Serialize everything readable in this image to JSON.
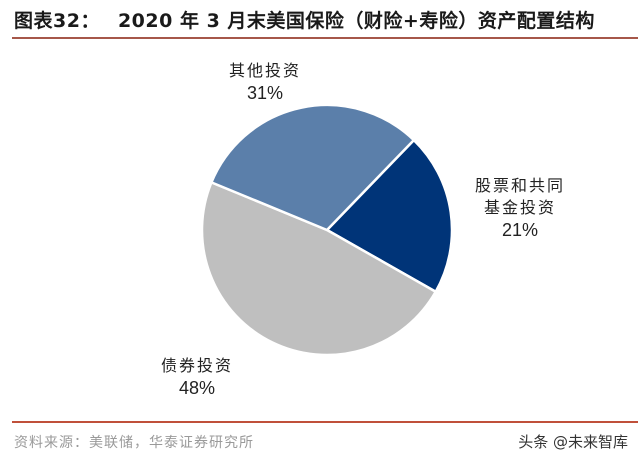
{
  "figure": {
    "label": "图表32：",
    "title": "2020 年 3 月末美国保险（财险+寿险）资产配置结构",
    "source": "资料来源：美联储，华泰证券研究所",
    "watermark": "头条 @未来智库"
  },
  "colors": {
    "rule": "#c0503a",
    "other": "#5b7faa",
    "equity": "#003478",
    "bond": "#bfbfbf"
  },
  "labels": {
    "other": {
      "name": "其他投资",
      "pct": "31%"
    },
    "equity": {
      "name_line1": "股票和共同",
      "name_line2": "基金投资",
      "pct": "21%"
    },
    "bond": {
      "name": "债券投资",
      "pct": "48%"
    }
  },
  "chart_data": {
    "type": "pie",
    "title": "2020 年 3 月末美国保险（财险+寿险）资产配置结构",
    "categories": [
      "股票和共同基金投资",
      "债券投资",
      "其他投资"
    ],
    "values": [
      21,
      48,
      31
    ],
    "unit": "%",
    "start_angle_deg_clockwise_from_top": 44,
    "colors": [
      "#003478",
      "#bfbfbf",
      "#5b7faa"
    ],
    "legend": "none (direct labels)",
    "source": "美联储，华泰证券研究所"
  }
}
